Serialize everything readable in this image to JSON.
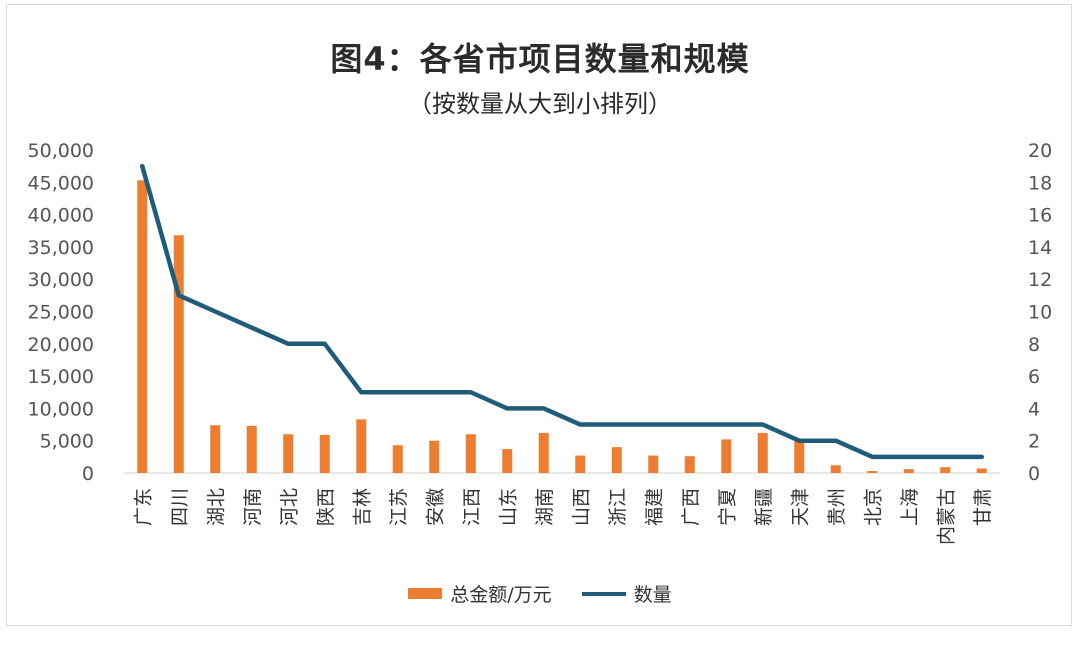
{
  "chart_data": {
    "type": "bar",
    "title": "图4：各省市项目数量和规模",
    "subtitle": "（按数量从大到小排列）",
    "categories": [
      "广东",
      "四川",
      "湖北",
      "河南",
      "河北",
      "陕西",
      "吉林",
      "江苏",
      "安徽",
      "江西",
      "山东",
      "湖南",
      "山西",
      "浙江",
      "福建",
      "广西",
      "宁夏",
      "新疆",
      "天津",
      "贵州",
      "北京",
      "上海",
      "内蒙古",
      "甘肃"
    ],
    "series": [
      {
        "name": "总金额/万元",
        "type": "bar",
        "axis": "left",
        "color": "#ED7D31",
        "values": [
          45300,
          36800,
          7400,
          7300,
          6000,
          5900,
          8300,
          4300,
          5000,
          6000,
          3700,
          6200,
          2700,
          4000,
          2700,
          2600,
          5200,
          6200,
          4900,
          1200,
          300,
          600,
          900,
          700
        ]
      },
      {
        "name": "数量",
        "type": "line",
        "axis": "right",
        "color": "#1F5C7A",
        "values": [
          19,
          11,
          10,
          9,
          8,
          8,
          5,
          5,
          5,
          5,
          4,
          4,
          3,
          3,
          3,
          3,
          3,
          3,
          2,
          2,
          1,
          1,
          1,
          1
        ]
      }
    ],
    "left_axis": {
      "ylim": [
        0,
        50000
      ],
      "ticks": [
        0,
        5000,
        10000,
        15000,
        20000,
        25000,
        30000,
        35000,
        40000,
        45000,
        50000
      ],
      "tick_labels": [
        "0",
        "5,000",
        "10,000",
        "15,000",
        "20,000",
        "25,000",
        "30,000",
        "35,000",
        "40,000",
        "45,000",
        "50,000"
      ]
    },
    "right_axis": {
      "ylim": [
        0,
        20
      ],
      "ticks": [
        0,
        2,
        4,
        6,
        8,
        10,
        12,
        14,
        16,
        18,
        20
      ],
      "tick_labels": [
        "0",
        "2",
        "4",
        "6",
        "8",
        "10",
        "12",
        "14",
        "16",
        "18",
        "20"
      ]
    },
    "grid": false,
    "legend_position": "bottom"
  }
}
